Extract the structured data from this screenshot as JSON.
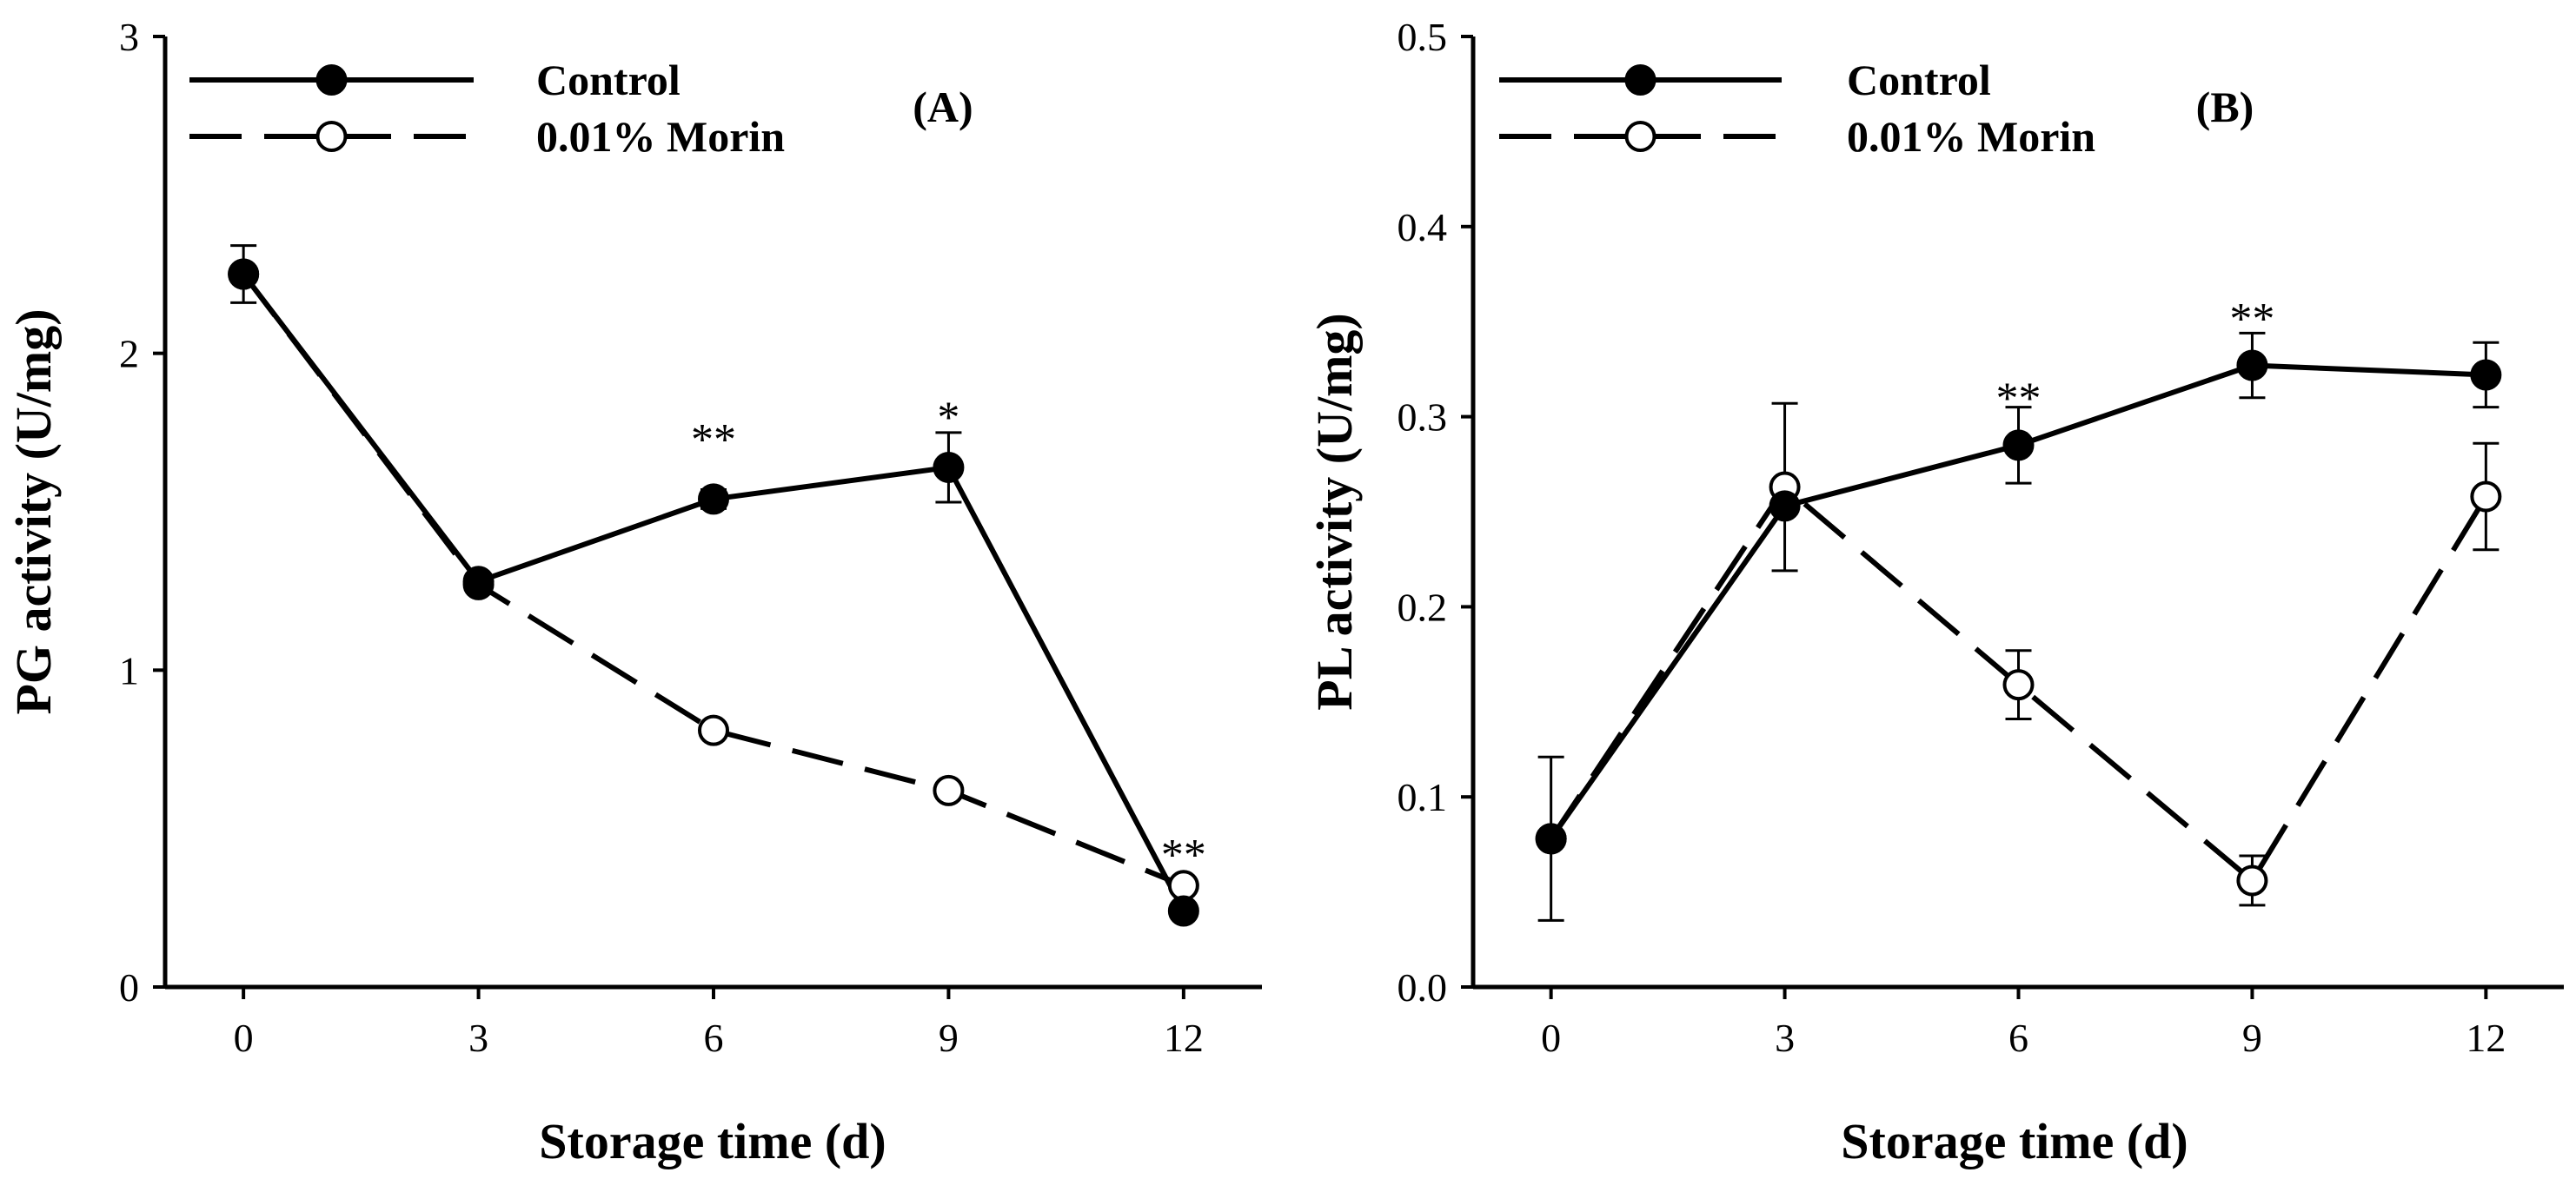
{
  "chart_data": [
    {
      "type": "line",
      "panel_label": "(A)",
      "xlabel": "Storage time (d)",
      "ylabel": "PG activity (U/mg)",
      "x": [
        0,
        3,
        6,
        9,
        12
      ],
      "xticks": [
        "0",
        "3",
        "6",
        "9",
        "12"
      ],
      "xlim": [
        -1,
        13
      ],
      "ylim": [
        0,
        3
      ],
      "yticks": [
        "0",
        "1",
        "2",
        "3"
      ],
      "ytick_values": [
        0,
        1,
        2,
        3
      ],
      "legend_position": "top-left",
      "series": [
        {
          "name": "Control",
          "style": "solid",
          "marker": "filled-circle",
          "values": [
            2.25,
            1.28,
            1.54,
            1.64,
            0.24
          ],
          "errors": [
            0.09,
            0.02,
            0.03,
            0.11,
            0.02
          ]
        },
        {
          "name": "0.01% Morin",
          "style": "dashed",
          "marker": "open-circle",
          "values": [
            2.25,
            1.27,
            0.81,
            0.62,
            0.32
          ],
          "errors": [
            0.0,
            0.0,
            0.0,
            0.0,
            0.0
          ]
        }
      ],
      "significance": [
        {
          "x": 6,
          "label": "**",
          "y": 1.73
        },
        {
          "x": 9,
          "label": "*",
          "y": 1.8
        },
        {
          "x": 12,
          "label": "**",
          "y": 0.42
        }
      ]
    },
    {
      "type": "line",
      "panel_label": "(B)",
      "xlabel": "Storage time (d)",
      "ylabel": "PL activity (U/mg)",
      "x": [
        0,
        3,
        6,
        9,
        12
      ],
      "xticks": [
        "0",
        "3",
        "6",
        "9",
        "12"
      ],
      "xlim": [
        -1,
        13
      ],
      "ylim": [
        0,
        0.5
      ],
      "yticks": [
        "0.0",
        "0.1",
        "0.2",
        "0.3",
        "0.4",
        "0.5"
      ],
      "ytick_values": [
        0,
        0.1,
        0.2,
        0.3,
        0.4,
        0.5
      ],
      "legend_position": "top-left",
      "series": [
        {
          "name": "Control",
          "style": "solid",
          "marker": "filled-circle",
          "values": [
            0.078,
            0.253,
            0.285,
            0.327,
            0.322
          ],
          "errors": [
            0.0,
            0.0,
            0.02,
            0.017,
            0.017
          ]
        },
        {
          "name": "0.01% Morin",
          "style": "dashed",
          "marker": "open-circle",
          "values": [
            0.078,
            0.263,
            0.159,
            0.056,
            0.258
          ],
          "errors": [
            0.043,
            0.044,
            0.018,
            0.013,
            0.028
          ]
        }
      ],
      "significance": [
        {
          "x": 6,
          "label": "**",
          "y": 0.31
        },
        {
          "x": 9,
          "label": "**",
          "y": 0.352
        }
      ]
    }
  ]
}
